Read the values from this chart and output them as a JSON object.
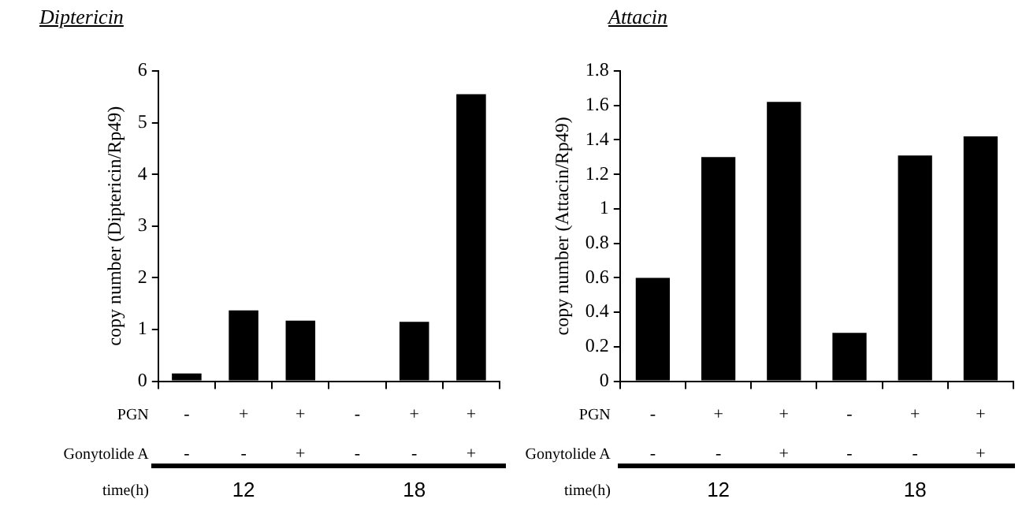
{
  "chart_data": [
    {
      "type": "bar",
      "title": "Diptericin",
      "ylabel": "copy number (Diptericin/Rp49)",
      "categories": [
        null,
        null,
        null,
        null,
        null,
        null
      ],
      "values": [
        0.15,
        1.37,
        1.17,
        0,
        1.15,
        5.55
      ],
      "color": "#000000",
      "ylim": [
        0,
        6
      ],
      "yticks": [
        0,
        1,
        2,
        3,
        4,
        5,
        6
      ],
      "grid": false,
      "legend": false,
      "annotations": [
        "PGN",
        "Gonytolide A",
        "time(h)",
        "-",
        "+",
        "+",
        "-",
        "+",
        "+",
        "-",
        "-",
        "+",
        "-",
        "-",
        "+",
        "12",
        "18"
      ]
    },
    {
      "type": "bar",
      "title": "Attacin",
      "ylabel": "copy number (Attacin/Rp49)",
      "categories": [
        null,
        null,
        null,
        null,
        null,
        null
      ],
      "values": [
        0.6,
        1.3,
        1.62,
        0.28,
        1.31,
        1.42
      ],
      "color": "#000000",
      "ylim": [
        0,
        1.8
      ],
      "yticks": [
        0,
        0.2,
        0.4,
        0.6,
        0.8,
        1,
        1.2,
        1.4,
        1.6,
        1.8
      ],
      "grid": false,
      "legend": false,
      "annotations": [
        "PGN",
        "Gonytolide A",
        "time(h)",
        "-",
        "+",
        "+",
        "-",
        "+",
        "+",
        "-",
        "-",
        "+",
        "-",
        "-",
        "+",
        "12",
        "18"
      ]
    }
  ]
}
